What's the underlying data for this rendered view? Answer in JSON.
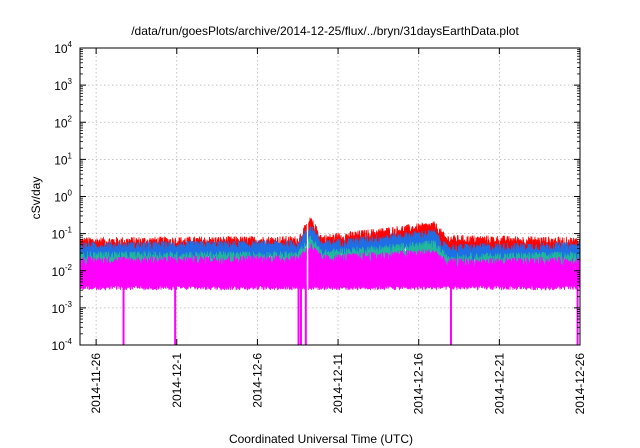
{
  "chart_data": {
    "type": "line",
    "title": "/data/run/goesPlots/archive/2014-12-25/flux/../bryn/31daysEarthData.plot",
    "xlabel": "Coordinated Universal Time (UTC)",
    "ylabel": "cSv/day",
    "y_scale": "log",
    "ylim": [
      0.0001,
      10000
    ],
    "y_ticks": [
      {
        "value": 0.0001,
        "base": "10",
        "exp": "-4"
      },
      {
        "value": 0.001,
        "base": "10",
        "exp": "-3"
      },
      {
        "value": 0.01,
        "base": "10",
        "exp": "-2"
      },
      {
        "value": 0.1,
        "base": "10",
        "exp": "-1"
      },
      {
        "value": 1,
        "base": "10",
        "exp": "0"
      },
      {
        "value": 10,
        "base": "10",
        "exp": "1"
      },
      {
        "value": 100,
        "base": "10",
        "exp": "2"
      },
      {
        "value": 1000,
        "base": "10",
        "exp": "3"
      },
      {
        "value": 10000,
        "base": "10",
        "exp": "4"
      }
    ],
    "xlim": [
      "2014-11-25",
      "2014-12-26"
    ],
    "x_ticks": [
      "2014-11-26",
      "2014-12-1",
      "2014-12-6",
      "2014-12-11",
      "2014-12-16",
      "2014-12-21",
      "2014-12-26"
    ],
    "x_tick_days": [
      1,
      6,
      11,
      16,
      21,
      26,
      31
    ],
    "grid": true,
    "series": [
      {
        "color": "#ff0000",
        "level": [
          [
            0,
            0.06
          ],
          [
            13.5,
            0.065
          ],
          [
            14.3,
            0.22
          ],
          [
            15,
            0.07
          ],
          [
            22,
            0.16
          ],
          [
            22.7,
            0.07
          ],
          [
            31,
            0.06
          ]
        ]
      },
      {
        "color": "#1e6fe6",
        "level": [
          [
            0,
            0.045
          ],
          [
            13.5,
            0.05
          ],
          [
            14.3,
            0.15
          ],
          [
            15,
            0.05
          ],
          [
            22,
            0.1
          ],
          [
            22.7,
            0.04
          ],
          [
            31,
            0.045
          ]
        ]
      },
      {
        "color": "#21b89c",
        "level": [
          [
            0,
            0.025
          ],
          [
            13.5,
            0.025
          ],
          [
            14.3,
            0.07
          ],
          [
            15,
            0.028
          ],
          [
            22,
            0.05
          ],
          [
            22.7,
            0.022
          ],
          [
            31,
            0.025
          ]
        ]
      },
      {
        "color": "#ff00ff",
        "level": [
          [
            0,
            0.018
          ],
          [
            13.5,
            0.02
          ],
          [
            14.3,
            0.045
          ],
          [
            15,
            0.02
          ],
          [
            22,
            0.03
          ],
          [
            22.7,
            0.016
          ],
          [
            31,
            0.018
          ]
        ],
        "floor": 0.0035
      }
    ],
    "dropouts": [
      {
        "day": 2.7
      },
      {
        "day": 5.9
      },
      {
        "day": 13.55
      },
      {
        "day": 13.7
      },
      {
        "day": 14.0
      },
      {
        "day": 23.0
      },
      {
        "day": 30.85
      }
    ],
    "gaps": [
      [
        14.05,
        14.15
      ]
    ]
  }
}
